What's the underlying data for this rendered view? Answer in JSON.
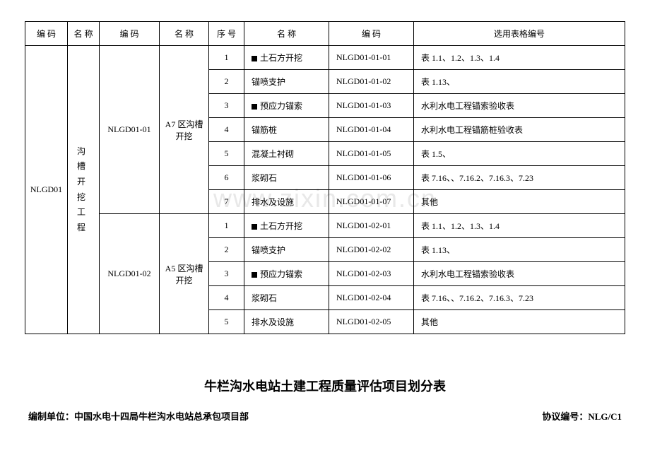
{
  "watermark": "www.zixin.com.cn",
  "table": {
    "headers": {
      "code1": "编  码",
      "name1": "名  称",
      "code2": "编  码",
      "name2": "名  称",
      "seq": "序  号",
      "name3": "名       称",
      "code3": "编       码",
      "select": "选用表格编号"
    },
    "level1": {
      "code": "NLGD01",
      "name": "沟 槽 开 挖 工 程"
    },
    "level2": [
      {
        "code": "NLGD01-01",
        "name": "A7 区沟槽开挖",
        "rows": [
          {
            "seq": "1",
            "marked": true,
            "name": "土石方开挖",
            "code": "NLGD01-01-01",
            "select": "表 1.1、1.2、1.3、1.4"
          },
          {
            "seq": "2",
            "marked": false,
            "name": "锚喷支护",
            "code": "NLGD01-01-02",
            "select": "表 1.13、"
          },
          {
            "seq": "3",
            "marked": true,
            "name": "预应力锚索",
            "code": "NLGD01-01-03",
            "select": "水利水电工程锚索验收表"
          },
          {
            "seq": "4",
            "marked": false,
            "name": "锚筋桩",
            "code": "NLGD01-01-04",
            "select": "水利水电工程锚筋桩验收表"
          },
          {
            "seq": "5",
            "marked": false,
            "name": "混凝土衬砌",
            "code": "NLGD01-01-05",
            "select": "表 1.5、"
          },
          {
            "seq": "6",
            "marked": false,
            "name": "浆砌石",
            "code": "NLGD01-01-06",
            "select": "表 7.16、、7.16.2、7.16.3、7.23"
          },
          {
            "seq": "7",
            "marked": false,
            "name": "排水及设施",
            "code": "NLGD01-01-07",
            "select": "其他"
          }
        ]
      },
      {
        "code": "NLGD01-02",
        "name": "A5 区沟槽开挖",
        "rows": [
          {
            "seq": "1",
            "marked": true,
            "name": "土石方开挖",
            "code": "NLGD01-02-01",
            "select": "表 1.1、1.2、1.3、1.4"
          },
          {
            "seq": "2",
            "marked": false,
            "name": "锚喷支护",
            "code": "NLGD01-02-02",
            "select": "表 1.13、"
          },
          {
            "seq": "3",
            "marked": true,
            "name": "预应力锚索",
            "code": "NLGD01-02-03",
            "select": "水利水电工程锚索验收表"
          },
          {
            "seq": "4",
            "marked": false,
            "name": "浆砌石",
            "code": "NLGD01-02-04",
            "select": "表 7.16、、7.16.2、7.16.3、7.23"
          },
          {
            "seq": "5",
            "marked": false,
            "name": "排水及设施",
            "code": "NLGD01-02-05",
            "select": "其他"
          }
        ]
      }
    ]
  },
  "title": "牛栏沟水电站土建工程质量评估项目划分表",
  "footer": {
    "left": "编制单位：中国水电十四局牛栏沟水电站总承包项目部",
    "right": "协议编号：NLG/C1"
  }
}
